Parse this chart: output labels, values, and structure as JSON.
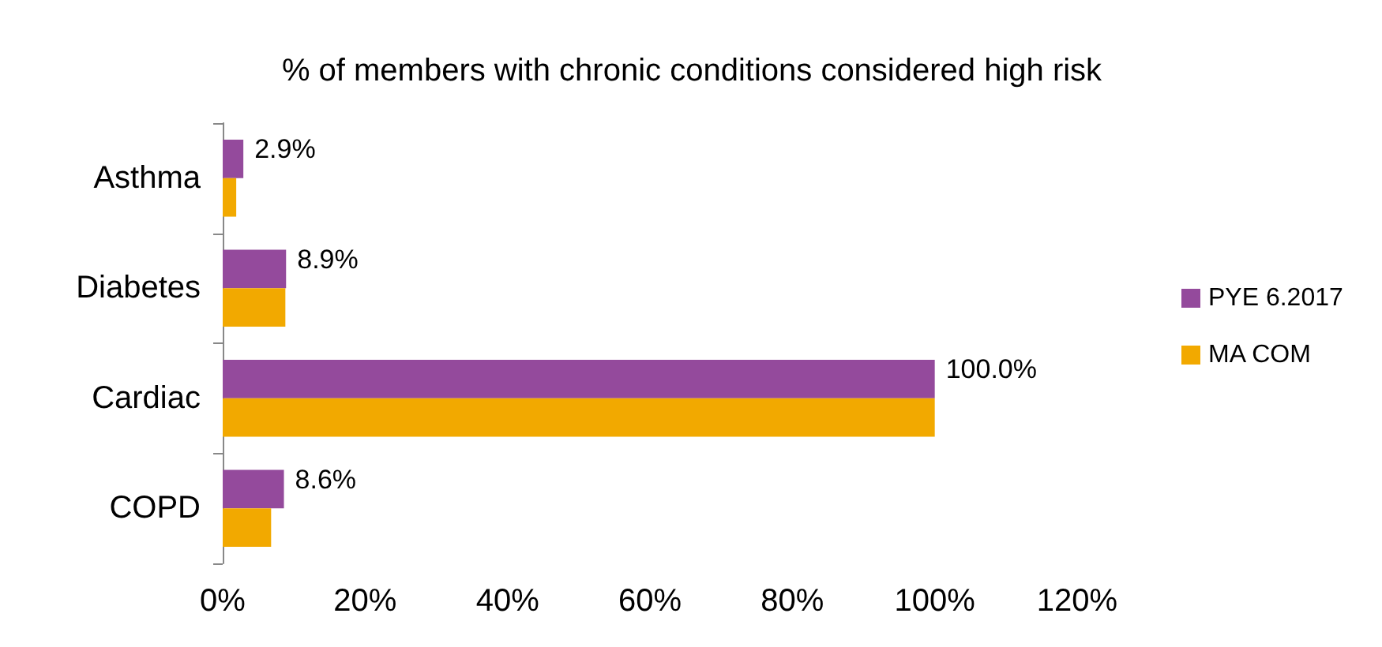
{
  "chart_data": {
    "type": "bar",
    "orientation": "horizontal",
    "title": "% of members with chronic conditions considered high risk",
    "categories": [
      "Asthma",
      "Diabetes",
      "Cardiac",
      "COPD"
    ],
    "series": [
      {
        "name": "PYE 6.2017",
        "color": "#944a9c",
        "values": [
          2.9,
          8.9,
          100.0,
          8.6
        ],
        "value_labels": [
          "2.9%",
          "8.9%",
          "100.0%",
          "8.6%"
        ]
      },
      {
        "name": "MA COM",
        "color": "#f2a900",
        "values": [
          1.9,
          8.8,
          100.0,
          6.8
        ]
      }
    ],
    "xlim": [
      0,
      120
    ],
    "xticks": [
      {
        "value": 0,
        "label": "0%"
      },
      {
        "value": 20,
        "label": "20%"
      },
      {
        "value": 40,
        "label": "40%"
      },
      {
        "value": 60,
        "label": "60%"
      },
      {
        "value": 80,
        "label": "80%"
      },
      {
        "value": 100,
        "label": "100%"
      },
      {
        "value": 120,
        "label": "120%"
      }
    ],
    "grid": false,
    "legend": "right"
  }
}
